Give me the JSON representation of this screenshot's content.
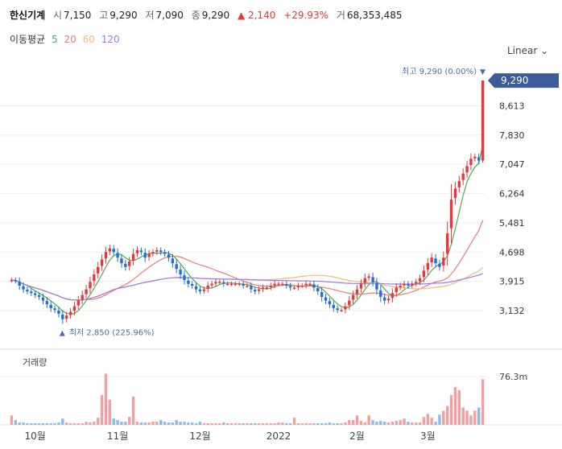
{
  "header": {
    "name": "한신기계",
    "open_label": "시",
    "open": "7,150",
    "high_label": "고",
    "high": "9,290",
    "low_label": "저",
    "low": "7,090",
    "close_label": "종",
    "close": "9,290",
    "change": "▲ 2,140",
    "change_pct": "+29.93%",
    "volume_label": "거",
    "volume": "68,353,485"
  },
  "ma": {
    "label": "이동평균",
    "periods": [
      "5",
      "20",
      "60",
      "120"
    ],
    "colors": [
      "#4caf50",
      "#f07a7a",
      "#f5b878",
      "#9b7be8"
    ]
  },
  "scale": {
    "label": "Linear",
    "icon": "chevron-down-icon"
  },
  "price_tag": "9,290",
  "max_label": "최고 9,290 (0.00%)",
  "min_label": "최저 2,850 (225.96%)",
  "volume_panel_label": "거래량",
  "volume_tick": "76.3m",
  "colors": {
    "up": "#e5393b",
    "down": "#1e6fd9",
    "tag": "#3d5a99",
    "grid": "#eeeeee"
  },
  "chart_data": {
    "type": "candlestick",
    "y_ticks": [
      "3,132",
      "3,915",
      "4,698",
      "5,481",
      "6,264",
      "7,047",
      "7,830",
      "8,613"
    ],
    "y_tick_values": [
      3132,
      3915,
      4698,
      5481,
      6264,
      7047,
      7830,
      8613
    ],
    "x_labels": [
      "10월",
      "11월",
      "12월",
      "2022",
      "2월",
      "3월"
    ],
    "x_label_index": [
      6,
      27,
      48,
      68,
      88,
      106
    ],
    "ylim": [
      2400,
      9550
    ],
    "volume_ylim": [
      0,
      90
    ],
    "close": [
      3950,
      3930,
      3800,
      3700,
      3650,
      3600,
      3550,
      3500,
      3400,
      3300,
      3200,
      3150,
      3050,
      2900,
      3000,
      3100,
      3250,
      3400,
      3550,
      3700,
      3900,
      4100,
      4300,
      4500,
      4700,
      4800,
      4700,
      4550,
      4400,
      4300,
      4450,
      4650,
      4750,
      4700,
      4550,
      4650,
      4700,
      4750,
      4700,
      4650,
      4550,
      4400,
      4250,
      4100,
      3950,
      3850,
      3800,
      3700,
      3650,
      3700,
      3800,
      3850,
      3900,
      3900,
      3850,
      3850,
      3850,
      3850,
      3850,
      3800,
      3800,
      3700,
      3650,
      3700,
      3750,
      3750,
      3800,
      3850,
      3850,
      3850,
      3800,
      3750,
      3750,
      3800,
      3800,
      3850,
      3850,
      3750,
      3650,
      3500,
      3400,
      3300,
      3200,
      3150,
      3150,
      3250,
      3400,
      3550,
      3700,
      3850,
      4000,
      4050,
      3900,
      3700,
      3500,
      3400,
      3450,
      3600,
      3750,
      3800,
      3850,
      3800,
      3850,
      3900,
      4000,
      4200,
      4400,
      4550,
      4400,
      4300,
      4550,
      5200,
      6100,
      6400,
      6600,
      6800,
      7000,
      7200,
      7250,
      7150,
      9290
    ],
    "vol_pct": [
      12,
      6,
      3,
      3,
      2,
      2,
      2,
      2,
      2,
      2,
      2,
      2,
      3,
      8,
      3,
      2,
      2,
      2,
      2,
      4,
      3,
      4,
      9,
      38,
      65,
      32,
      8,
      6,
      4,
      4,
      10,
      36,
      4,
      3,
      3,
      3,
      4,
      4,
      6,
      4,
      3,
      3,
      6,
      4,
      4,
      3,
      3,
      2,
      4,
      2,
      2,
      2,
      2,
      2,
      3,
      2,
      2,
      2,
      2,
      2,
      2,
      2,
      2,
      2,
      2,
      2,
      2,
      2,
      3,
      3,
      2,
      2,
      9,
      2,
      2,
      2,
      2,
      2,
      2,
      2,
      2,
      3,
      2,
      2,
      2,
      3,
      6,
      6,
      12,
      5,
      3,
      12,
      6,
      4,
      5,
      4,
      3,
      4,
      5,
      6,
      8,
      4,
      3,
      3,
      3,
      10,
      14,
      9,
      4,
      13,
      18,
      24,
      38,
      48,
      44,
      22,
      18,
      12,
      18,
      22,
      58
    ]
  }
}
